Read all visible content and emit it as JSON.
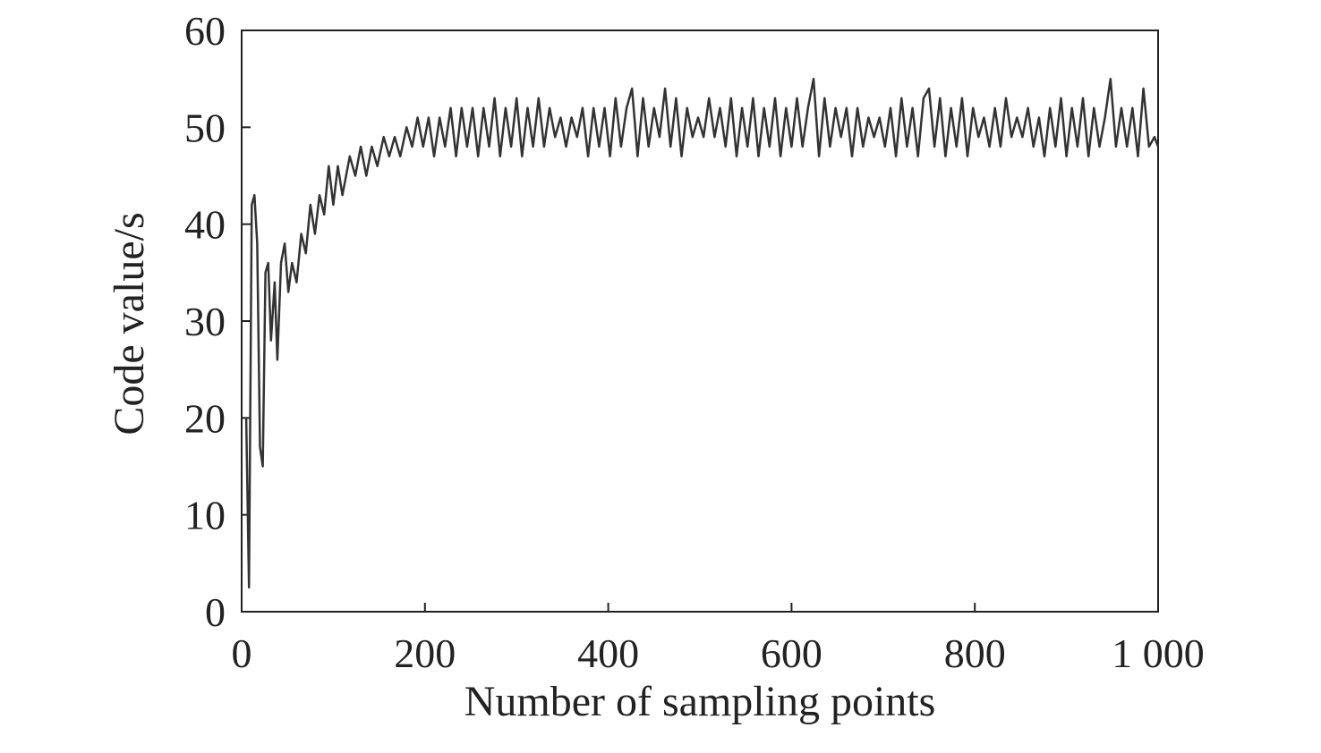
{
  "chart_data": {
    "type": "line",
    "xlabel": "Number of sampling points",
    "ylabel": "Code value/s",
    "xlim": [
      0,
      1000
    ],
    "ylim": [
      0,
      60
    ],
    "xticks": [
      0,
      200,
      400,
      600,
      800,
      {
        "value": 1000,
        "label": "1 000"
      }
    ],
    "yticks": [
      0,
      10,
      20,
      30,
      40,
      50,
      60
    ],
    "grid": false,
    "x": [
      5,
      8,
      11,
      14,
      17,
      20,
      23,
      26,
      29,
      32,
      36,
      39,
      43,
      47,
      51,
      55,
      60,
      65,
      70,
      75,
      80,
      85,
      90,
      95,
      100,
      105,
      110,
      118,
      124,
      130,
      136,
      142,
      148,
      155,
      161,
      167,
      173,
      180,
      186,
      192,
      198,
      204,
      210,
      216,
      222,
      228,
      234,
      240,
      246,
      252,
      258,
      264,
      270,
      276,
      282,
      288,
      294,
      300,
      306,
      312,
      318,
      324,
      330,
      336,
      342,
      348,
      354,
      360,
      366,
      372,
      378,
      384,
      390,
      396,
      402,
      408,
      414,
      420,
      426,
      432,
      438,
      444,
      450,
      456,
      462,
      468,
      474,
      480,
      486,
      492,
      498,
      504,
      510,
      516,
      522,
      528,
      534,
      540,
      546,
      552,
      558,
      564,
      570,
      576,
      582,
      588,
      594,
      600,
      606,
      612,
      618,
      624,
      630,
      636,
      642,
      648,
      654,
      660,
      666,
      672,
      678,
      684,
      690,
      696,
      702,
      708,
      714,
      720,
      726,
      732,
      738,
      744,
      750,
      756,
      762,
      768,
      774,
      780,
      786,
      792,
      798,
      804,
      810,
      816,
      822,
      828,
      834,
      840,
      846,
      852,
      858,
      864,
      870,
      876,
      882,
      888,
      894,
      900,
      906,
      912,
      918,
      924,
      930,
      936,
      942,
      948,
      954,
      960,
      966,
      972,
      978,
      984,
      990,
      996,
      1000
    ],
    "series": [
      {
        "name": "Code value",
        "color": "#333333",
        "values": [
          20,
          2.5,
          42,
          43,
          38,
          17,
          15,
          35,
          36,
          28,
          34,
          26,
          36,
          38,
          33,
          36,
          34,
          39,
          37,
          42,
          39,
          43,
          41,
          46,
          42,
          46,
          43,
          47,
          45,
          48,
          45,
          48,
          46,
          49,
          47,
          49,
          47,
          50,
          48,
          51,
          48,
          51,
          47,
          51,
          48,
          52,
          47,
          52,
          48,
          52,
          47,
          52,
          48,
          53,
          47,
          52,
          48,
          53,
          47,
          52,
          48,
          53,
          48,
          52,
          49,
          51,
          48,
          51,
          49,
          52,
          47,
          52,
          48,
          52,
          47,
          53,
          48,
          52,
          54,
          47,
          53,
          48,
          52,
          49,
          54,
          48,
          53,
          47,
          52,
          49,
          51,
          49,
          53,
          49,
          52,
          48,
          53,
          47,
          52,
          48,
          53,
          47,
          52,
          48,
          53,
          47,
          52,
          48,
          53,
          48,
          52,
          55,
          47,
          53,
          48,
          52,
          49,
          52,
          47,
          52,
          48,
          51,
          49,
          51,
          48,
          52,
          47,
          53,
          48,
          52,
          47,
          53,
          54,
          48,
          53,
          47,
          52,
          48,
          53,
          47,
          52,
          49,
          51,
          48,
          52,
          48,
          53,
          49,
          51,
          49,
          52,
          48,
          51,
          47,
          52,
          48,
          53,
          47,
          52,
          48,
          53,
          47,
          52,
          48,
          51,
          55,
          48,
          52,
          48,
          52,
          47,
          54,
          48,
          49,
          48
        ]
      }
    ]
  }
}
